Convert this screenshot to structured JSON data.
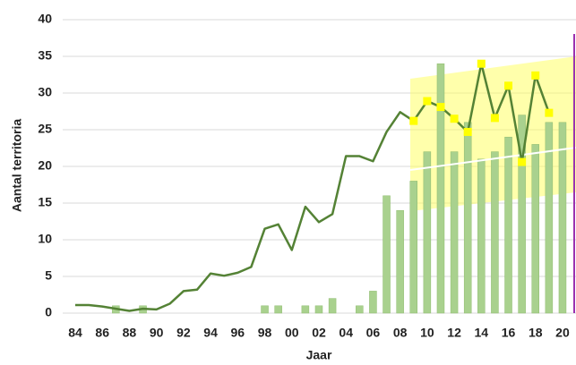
{
  "chart_data": {
    "type": "bar",
    "xlabel": "Jaar",
    "ylabel": "Aantal territoria",
    "categories": [
      "84",
      null,
      "86",
      null,
      "88",
      null,
      "90",
      null,
      "92",
      null,
      "94",
      null,
      "96",
      null,
      "98",
      null,
      "00",
      null,
      "02",
      null,
      "04",
      null,
      "06",
      null,
      "08",
      null,
      "10",
      null,
      "12",
      null,
      "14",
      null,
      "16",
      null,
      "18",
      null,
      "20"
    ],
    "ylim": [
      0,
      40
    ],
    "yticks": [
      0,
      5,
      10,
      15,
      20,
      25,
      30,
      35,
      40
    ],
    "grid": true,
    "series": [
      {
        "type": "bar",
        "color": "#a9d18e",
        "values": [
          0,
          0,
          0,
          1,
          0,
          1,
          0,
          0,
          0,
          0,
          0,
          0,
          0,
          0,
          1,
          1,
          0,
          1,
          1,
          2,
          0,
          1,
          3,
          16,
          14,
          18,
          22,
          34,
          22,
          26,
          21,
          22,
          24,
          27,
          23,
          26,
          26
        ]
      },
      {
        "type": "line",
        "color": "#548235",
        "values": [
          1.1,
          1.1,
          0.9,
          0.6,
          0.3,
          0.6,
          0.5,
          1.3,
          3.0,
          3.2,
          5.4,
          5.1,
          5.5,
          6.3,
          11.5,
          12.1,
          8.6,
          14.5,
          12.4,
          13.5,
          21.4,
          21.4,
          20.7,
          24.7,
          27.4,
          26.2,
          28.9,
          28.1,
          26.5,
          24.7,
          34.0,
          26.6,
          31.0,
          20.6,
          32.4,
          27.3,
          null
        ]
      },
      {
        "type": "marker",
        "color": "#ffff00",
        "values": [
          null,
          null,
          null,
          null,
          null,
          null,
          null,
          null,
          null,
          null,
          null,
          null,
          null,
          null,
          null,
          null,
          null,
          null,
          null,
          null,
          null,
          null,
          null,
          null,
          null,
          26.2,
          28.9,
          28.1,
          26.5,
          24.7,
          34.0,
          26.6,
          31.0,
          20.6,
          32.4,
          27.3,
          null
        ]
      }
    ]
  }
}
